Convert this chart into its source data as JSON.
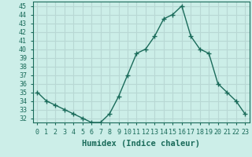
{
  "x": [
    0,
    1,
    2,
    3,
    4,
    5,
    6,
    7,
    8,
    9,
    10,
    11,
    12,
    13,
    14,
    15,
    16,
    17,
    18,
    19,
    20,
    21,
    22,
    23
  ],
  "y": [
    35,
    34,
    33.5,
    33,
    32.5,
    32,
    31.5,
    31.5,
    32.5,
    34.5,
    37,
    39.5,
    40,
    41.5,
    43.5,
    44,
    45,
    41.5,
    40,
    39.5,
    36,
    35,
    34,
    32.5
  ],
  "line_color": "#1a6b5a",
  "marker": "+",
  "marker_size": 4,
  "bg_color": "#cceee8",
  "grid_color": "#b8d8d4",
  "xlabel": "Humidex (Indice chaleur)",
  "xlim": [
    -0.5,
    23.5
  ],
  "ylim": [
    31.5,
    45.5
  ],
  "yticks": [
    32,
    33,
    34,
    35,
    36,
    37,
    38,
    39,
    40,
    41,
    42,
    43,
    44,
    45
  ],
  "xticks": [
    0,
    1,
    2,
    3,
    4,
    5,
    6,
    7,
    8,
    9,
    10,
    11,
    12,
    13,
    14,
    15,
    16,
    17,
    18,
    19,
    20,
    21,
    22,
    23
  ],
  "xlabel_fontsize": 7.5,
  "tick_fontsize": 6,
  "line_width": 1.0
}
